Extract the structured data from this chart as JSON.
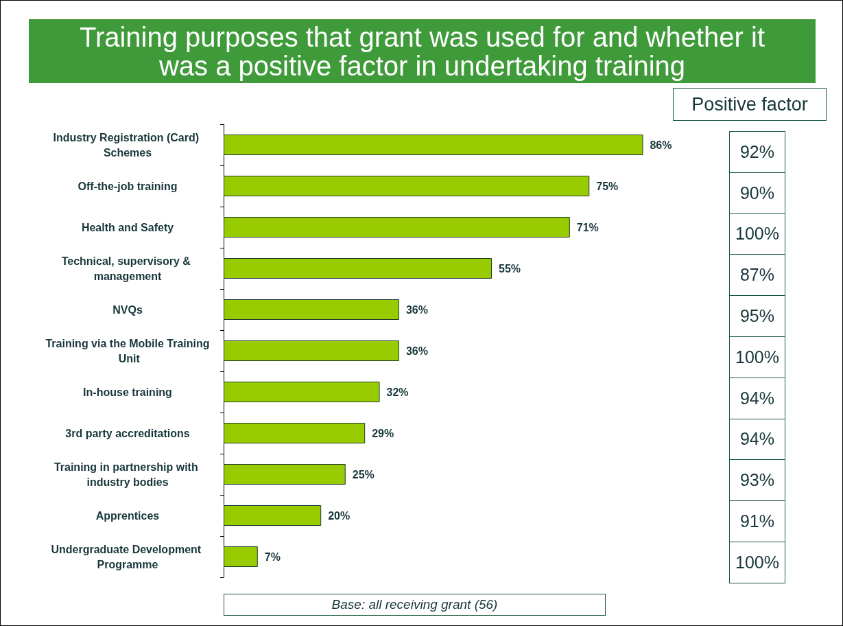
{
  "chart_data": [
    {
      "type": "bar",
      "orientation": "horizontal",
      "title": "Training purposes that grant was used for and whether it was a positive factor in undertaking training",
      "categories": [
        "Industry Registration (Card) Schemes",
        "Off-the-job training",
        "Health and Safety",
        "Technical, supervisory & management",
        "NVQs",
        "Training via the Mobile Training Unit",
        "In-house training",
        "3rd party accreditations",
        "Training in partnership with industry bodies",
        "Apprentices",
        "Undergraduate Development Programme"
      ],
      "values": [
        86,
        75,
        71,
        55,
        36,
        36,
        32,
        29,
        25,
        20,
        7
      ],
      "value_labels": [
        "86%",
        "75%",
        "71%",
        "55%",
        "36%",
        "36%",
        "32%",
        "29%",
        "25%",
        "20%",
        "7%"
      ],
      "color": "#99cc00",
      "tick_labels": "y",
      "grid": false,
      "annotations": [
        "Base: all receiving grant (56)"
      ]
    },
    {
      "type": "other",
      "title": "Positive factor",
      "annotations": [
        "92%",
        "90%",
        "100%",
        "87%",
        "95%",
        "100%",
        "94%",
        "94%",
        "93%",
        "91%",
        "100%"
      ]
    }
  ]
}
